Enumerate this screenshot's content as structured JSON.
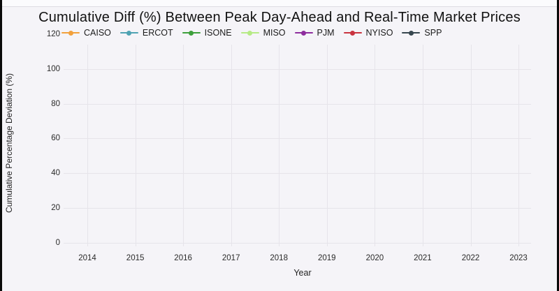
{
  "page": {
    "background_color": "#f5f4f8",
    "edge_bar_color": "#0a0a0a",
    "grid_color": "#e6e4ea"
  },
  "chart_data": {
    "type": "line",
    "title": "Cumulative Diff (%) Between Peak Day-Ahead and Real-Time Market Prices",
    "xlabel": "Year",
    "ylabel": "Cumulative Percentage Deviation (%)",
    "x_ticks": [
      "2014",
      "2015",
      "2016",
      "2017",
      "2018",
      "2019",
      "2020",
      "2021",
      "2022",
      "2023"
    ],
    "y_ticks": [
      0,
      20,
      40,
      60,
      80,
      100,
      120
    ],
    "ylim": [
      0,
      120
    ],
    "grid": true,
    "legend_position": "top-left",
    "series": [
      {
        "name": "CAISO",
        "color": "#f2a13c",
        "values": []
      },
      {
        "name": "ERCOT",
        "color": "#4fa3b3",
        "values": []
      },
      {
        "name": "ISONE",
        "color": "#3ea03c",
        "values": []
      },
      {
        "name": "MISO",
        "color": "#b6ea85",
        "values": []
      },
      {
        "name": "PJM",
        "color": "#8e2d9e",
        "values": []
      },
      {
        "name": "NYISO",
        "color": "#c9333f",
        "values": []
      },
      {
        "name": "SPP",
        "color": "#37474f",
        "values": []
      }
    ]
  }
}
